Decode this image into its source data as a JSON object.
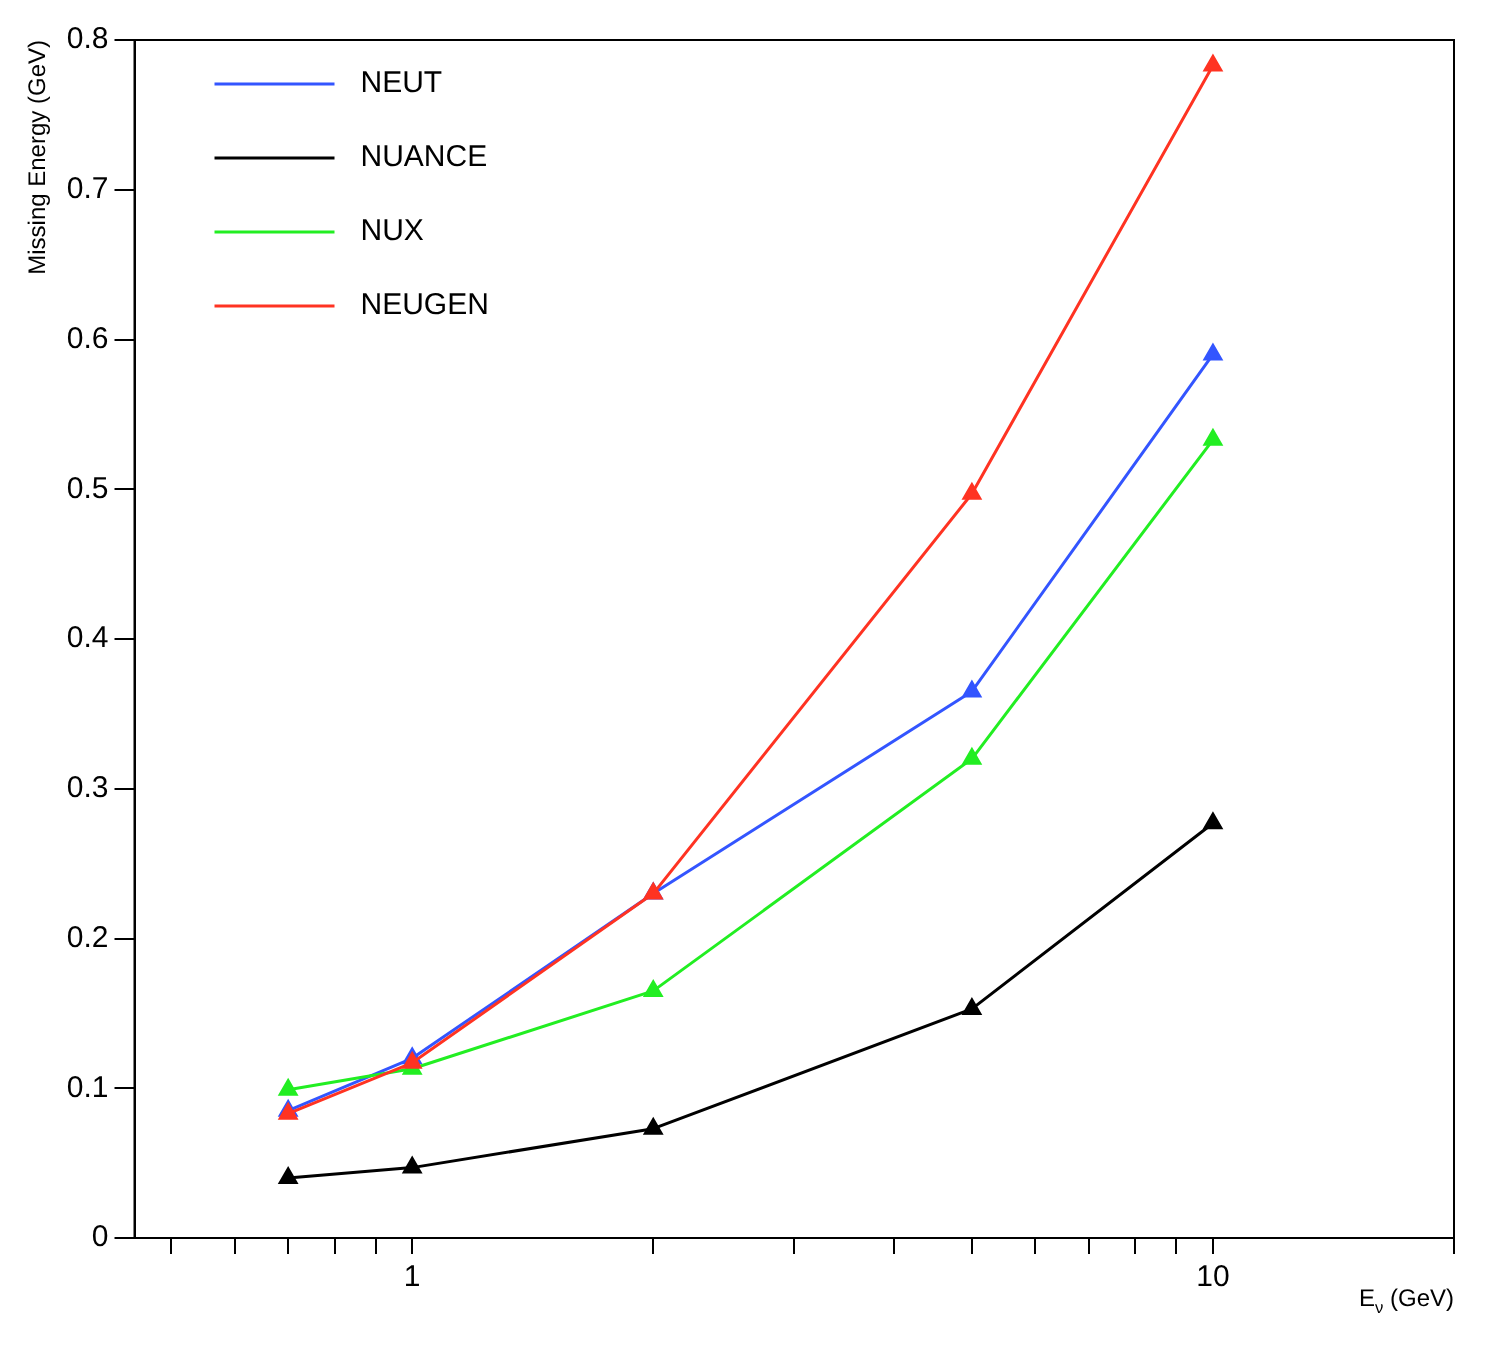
{
  "chart_data": {
    "type": "line",
    "xlabel": "E$_{ν}$ (GeV)",
    "ylabel": "Missing Energy (GeV)",
    "log": "x",
    "xlim": [
      0.45,
      20
    ],
    "xticks": [
      {
        "value": 0.5,
        "label": null
      },
      {
        "value": 0.6,
        "label": null
      },
      {
        "value": 0.7,
        "label": null
      },
      {
        "value": 0.8,
        "label": null
      },
      {
        "value": 0.9,
        "label": null
      },
      1,
      {
        "value": 2,
        "label": null
      },
      {
        "value": 3,
        "label": null
      },
      {
        "value": 4,
        "label": null
      },
      {
        "value": 5,
        "label": null
      },
      {
        "value": 6,
        "label": null
      },
      {
        "value": 7,
        "label": null
      },
      {
        "value": 8,
        "label": null
      },
      {
        "value": 9,
        "label": null
      },
      10,
      {
        "value": 20,
        "label": null
      }
    ],
    "ylim": [
      0,
      0.8
    ],
    "yticks": [
      0,
      0.1,
      0.2,
      0.3,
      0.4,
      0.5,
      0.6,
      0.7,
      0.8
    ],
    "grid": false,
    "legend": "top left",
    "marker": "triangle",
    "line_style": "solid",
    "x": [
      0.7,
      1,
      2,
      5,
      10
    ],
    "series": [
      {
        "name": "NEUT",
        "color": "#3355ff",
        "values": [
          0.085,
          0.12,
          0.23,
          0.365,
          0.59
        ]
      },
      {
        "name": "NUANCE",
        "color": "#000000",
        "values": [
          0.04,
          0.047,
          0.073,
          0.153,
          0.277
        ]
      },
      {
        "name": "NUX",
        "color": "#22ee22",
        "values": [
          0.099,
          0.113,
          0.165,
          0.32,
          0.533
        ]
      },
      {
        "name": "NEUGEN",
        "color": "#ff3322",
        "values": [
          0.083,
          0.117,
          0.23,
          0.497,
          0.783
        ]
      }
    ]
  }
}
